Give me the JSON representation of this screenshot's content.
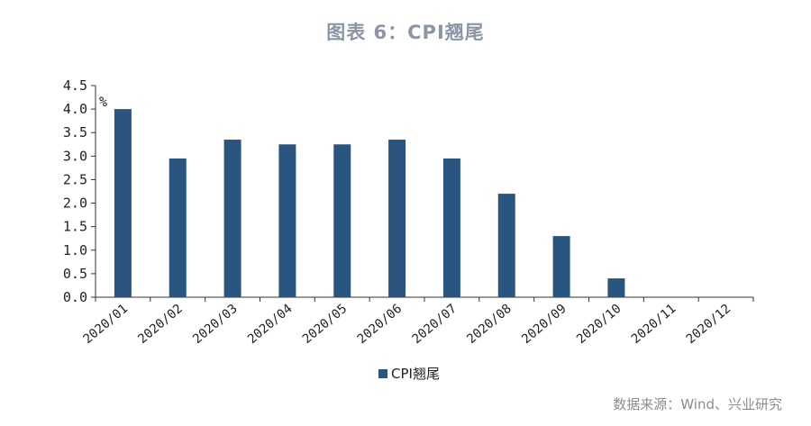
{
  "title": "图表 6：CPI翘尾",
  "source": "数据来源：Wind、兴业研究",
  "chart_data": {
    "type": "bar",
    "categories": [
      "2020/01",
      "2020/02",
      "2020/03",
      "2020/04",
      "2020/05",
      "2020/06",
      "2020/07",
      "2020/08",
      "2020/09",
      "2020/10",
      "2020/11",
      "2020/12"
    ],
    "series": [
      {
        "name": "CPI翘尾",
        "values": [
          4.0,
          2.95,
          3.35,
          3.25,
          3.25,
          3.35,
          2.95,
          2.2,
          1.3,
          0.4,
          0,
          0
        ]
      }
    ],
    "unit_label": "%",
    "ylim": [
      0,
      4.5
    ],
    "yticks": [
      "0.0",
      "0.5",
      "1.0",
      "1.5",
      "2.0",
      "2.5",
      "3.0",
      "3.5",
      "4.0",
      "4.5"
    ],
    "grid": false,
    "legend_position": "bottom",
    "bar_color": "#2a5580"
  }
}
